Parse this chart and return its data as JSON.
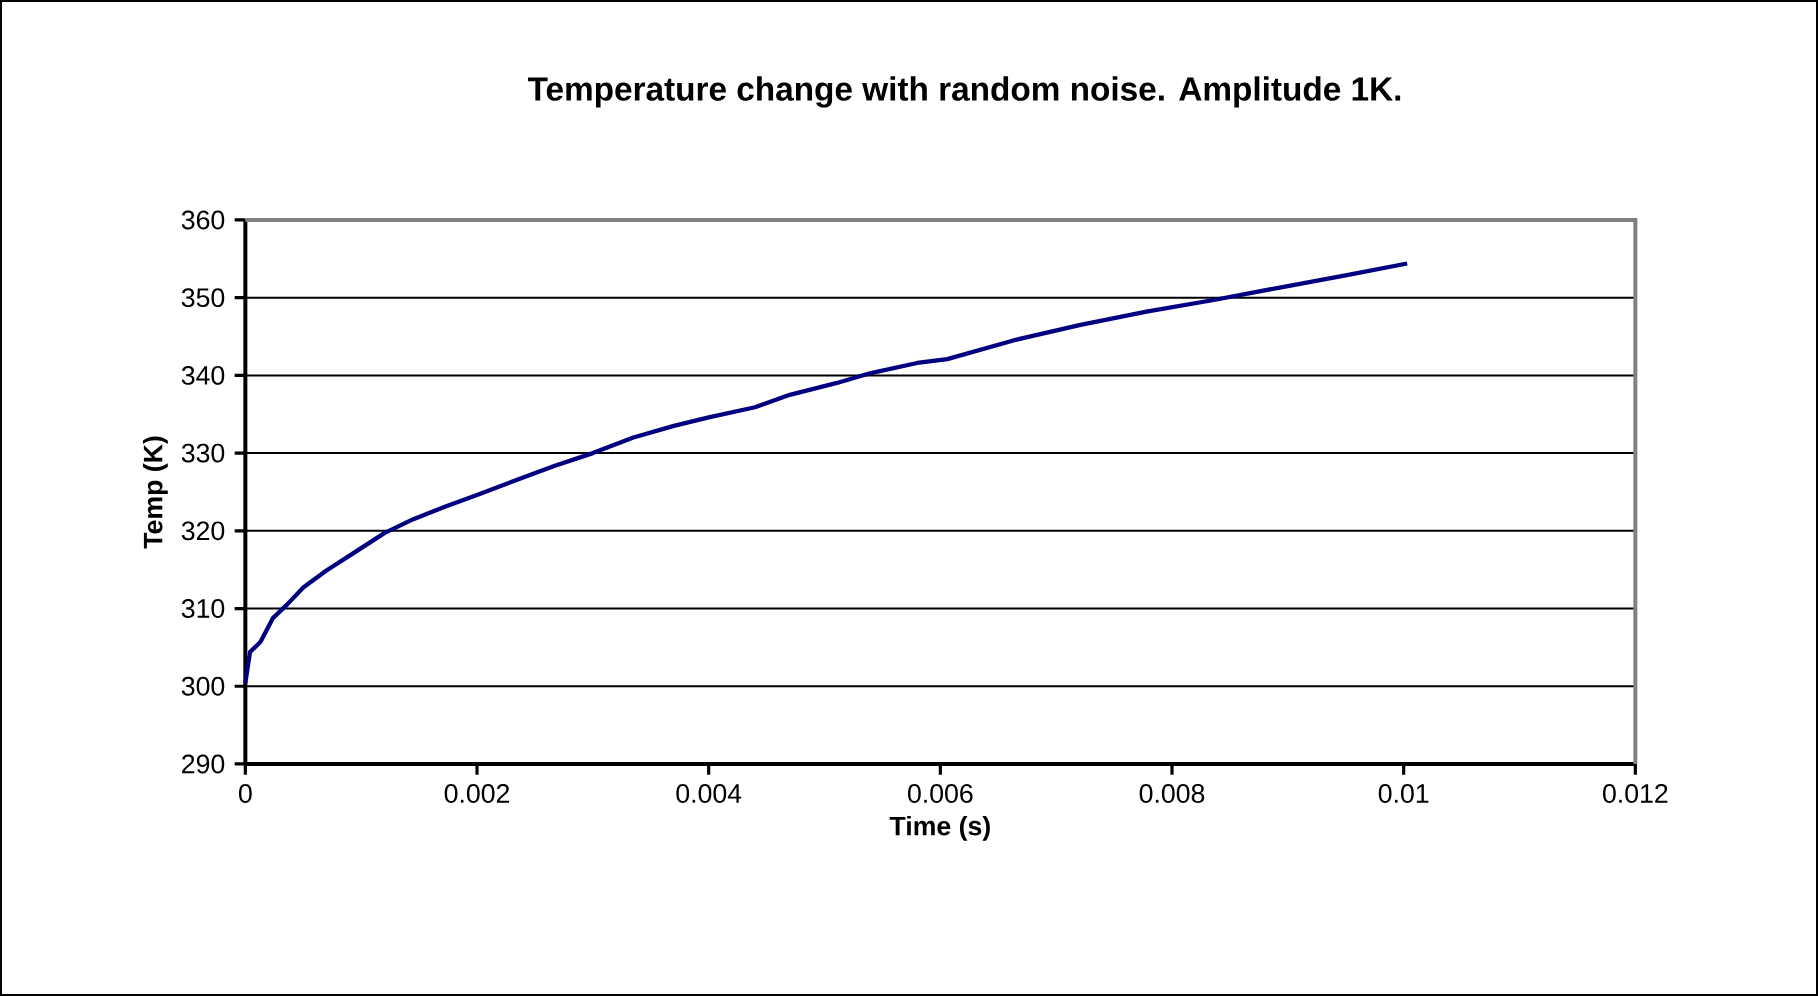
{
  "chart_data": {
    "type": "line",
    "title": "Temperature change with random noise. Amplitude 1K.",
    "xlabel": "Time (s)",
    "ylabel": "Temp (K)",
    "x": [
      0,
      4e-05,
      0.00013,
      0.00024,
      0.00036,
      0.0005,
      0.0007,
      0.00093,
      0.0012,
      0.00145,
      0.00174,
      0.002,
      0.0023,
      0.00266,
      0.003,
      0.00335,
      0.0037,
      0.004,
      0.0044,
      0.0047,
      0.0051,
      0.0054,
      0.0058,
      0.00606,
      0.00663,
      0.00721,
      0.00778,
      0.00836,
      0.00893,
      0.00951,
      0.01003
    ],
    "series": [
      {
        "color": "#000080",
        "values": [
          300.4,
          304.4,
          305.7,
          308.8,
          310.5,
          312.7,
          314.9,
          317.1,
          319.7,
          321.5,
          323.2,
          324.6,
          326.3,
          328.3,
          330,
          332,
          333.5,
          334.6,
          335.9,
          337.5,
          339,
          340.3,
          341.6,
          342.1,
          344.5,
          346.5,
          348.2,
          349.7,
          351.3,
          352.9,
          354.4
        ]
      }
    ],
    "xlim": [
      0,
      0.012
    ],
    "xticks": [
      0,
      0.002,
      0.004,
      0.006,
      0.008,
      0.01,
      0.012
    ],
    "ylim": [
      290,
      360
    ],
    "yticks": [
      290,
      300,
      310,
      320,
      330,
      340,
      350,
      360
    ],
    "grid": "y",
    "marker": "none",
    "line_style": "solid"
  }
}
